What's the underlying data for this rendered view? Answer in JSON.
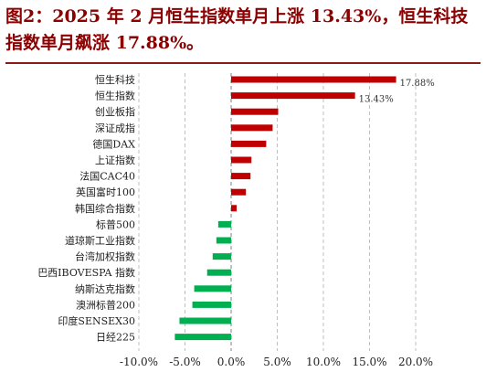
{
  "title": "图2：2025 年 2 月恒生指数单月上涨 13.43%，恒生科技指数单月飙涨 17.88%。",
  "chart_data": {
    "type": "bar",
    "orientation": "horizontal",
    "categories": [
      "恒生科技",
      "恒生指数",
      "创业板指",
      "深证成指",
      "德国DAX",
      "上证指数",
      "法国CAC40",
      "英国富时100",
      "韩国综合指数",
      "标普500",
      "道琼斯工业指数",
      "台湾加权指数",
      "巴西IBOVESPA 指数",
      "纳斯达克指数",
      "澳洲标普200",
      "印度SENSEX30",
      "日经225"
    ],
    "values": [
      17.88,
      13.43,
      5.1,
      4.5,
      3.8,
      2.2,
      2.1,
      1.6,
      0.6,
      -1.4,
      -1.6,
      -2.0,
      -2.6,
      -4.0,
      -4.2,
      -5.6,
      -6.1
    ],
    "data_labels": {
      "0": "17.88%",
      "1": "13.43%"
    },
    "xlim": [
      -10,
      20
    ],
    "xticks": [
      "-10.0%",
      "-5.0%",
      "0.0%",
      "5.0%",
      "10.0%",
      "15.0%",
      "20.0%"
    ],
    "xtick_values": [
      -10,
      -5,
      0,
      5,
      10,
      15,
      20
    ],
    "colors": {
      "positive": "#c00000",
      "negative": "#00b050",
      "grid": "#bfbfbf"
    },
    "grid": true,
    "gridlines": "vertical-dashed"
  }
}
